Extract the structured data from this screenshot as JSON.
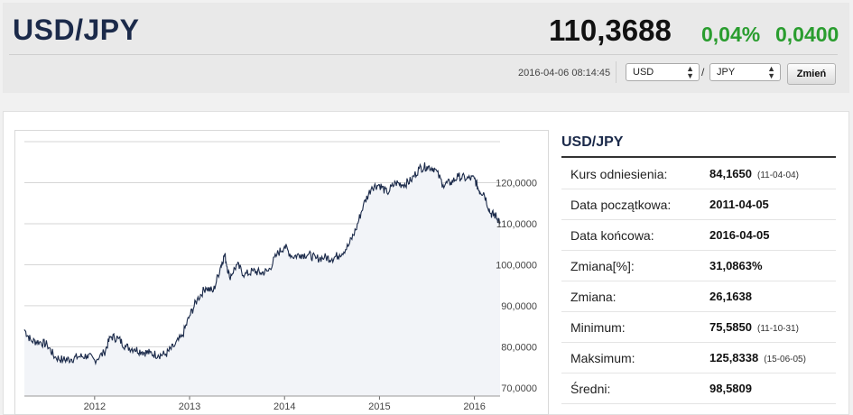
{
  "header": {
    "pair": "USD/JPY",
    "price": "110,3688",
    "change_pct": "0,04%",
    "change_abs": "0,0400",
    "timestamp": "2016-04-06 08:14:45",
    "from_currency": "USD",
    "to_currency": "JPY",
    "separator": "/",
    "change_button": "Zmień",
    "change_color": "#2a9d2f"
  },
  "stats": {
    "title": "USD/JPY",
    "rows": [
      {
        "label": "Kurs odniesienia:",
        "value": "84,1650",
        "date": "(11-04-04)"
      },
      {
        "label": "Data początkowa:",
        "value": "2011-04-05",
        "date": ""
      },
      {
        "label": "Data końcowa:",
        "value": "2016-04-05",
        "date": ""
      },
      {
        "label": "Zmiana[%]:",
        "value": "31,0863%",
        "date": ""
      },
      {
        "label": "Zmiana:",
        "value": "26,1638",
        "date": ""
      },
      {
        "label": "Minimum:",
        "value": "75,5850",
        "date": "(11-10-31)"
      },
      {
        "label": "Maksimum:",
        "value": "125,8338",
        "date": "(15-06-05)"
      },
      {
        "label": "Średni:",
        "value": "98,5809",
        "date": ""
      }
    ]
  },
  "chart_data": {
    "type": "area",
    "x_ticks": [
      "2012",
      "2013",
      "2014",
      "2015",
      "2016"
    ],
    "y_ticks": [
      "70,0000",
      "80,0000",
      "90,0000",
      "100,0000",
      "110,0000",
      "120,0000"
    ],
    "ylim": [
      68,
      130
    ],
    "xlim": [
      2011.26,
      2016.27
    ],
    "line_color": "#1b2a4a",
    "fill_color": "#f2f4f8",
    "series": [
      {
        "x": [
          2011.26,
          2011.33,
          2011.42,
          2011.5,
          2011.58,
          2011.67,
          2011.75,
          2011.83,
          2011.92,
          2012.0,
          2012.1,
          2012.17,
          2012.25,
          2012.33,
          2012.42,
          2012.5,
          2012.58,
          2012.67,
          2012.75,
          2012.83,
          2012.92,
          2013.0,
          2013.08,
          2013.17,
          2013.25,
          2013.33,
          2013.37,
          2013.42,
          2013.5,
          2013.58,
          2013.67,
          2013.75,
          2013.83,
          2013.92,
          2014.0,
          2014.08,
          2014.17,
          2014.25,
          2014.33,
          2014.42,
          2014.5,
          2014.58,
          2014.67,
          2014.75,
          2014.83,
          2014.92,
          2015.0,
          2015.08,
          2015.17,
          2015.25,
          2015.33,
          2015.42,
          2015.5,
          2015.58,
          2015.67,
          2015.75,
          2015.83,
          2015.92,
          2016.0,
          2016.05,
          2016.1,
          2016.17,
          2016.22,
          2016.27
        ],
        "y": [
          84.2,
          81.5,
          81.2,
          80.5,
          77.5,
          76.8,
          77.0,
          77.6,
          77.8,
          76.8,
          78.5,
          82.5,
          82.0,
          80.0,
          79.5,
          78.8,
          78.5,
          78.0,
          78.2,
          80.0,
          82.5,
          87.5,
          91.5,
          94.5,
          93.5,
          99.8,
          102.5,
          97.0,
          100.0,
          97.5,
          98.5,
          98.0,
          98.5,
          102.5,
          104.5,
          102.0,
          102.5,
          102.5,
          101.5,
          101.8,
          101.5,
          102.5,
          104.5,
          108.5,
          114.5,
          119.0,
          119.5,
          117.5,
          120.0,
          119.5,
          120.5,
          123.5,
          124.0,
          123.5,
          119.5,
          120.0,
          121.5,
          121.0,
          121.0,
          118.0,
          117.5,
          112.5,
          112.0,
          110.5
        ]
      }
    ]
  }
}
